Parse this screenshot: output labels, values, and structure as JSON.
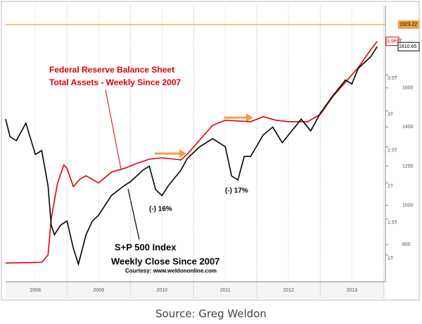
{
  "chart_data": {
    "type": "line",
    "source": "Source: Greg Weldon",
    "annotations": [
      "Federal Reserve Balance Sheet",
      "Total Assets - Weekly Since 2007",
      "S+P 500 Index",
      "Weekly Close Since 2007",
      "Courtesy: www.weldononline.com",
      "(-) 16%",
      "(-) 17%"
    ],
    "xlim": [
      2008.03,
      2014.03
    ],
    "xticks": [
      {
        "value": 2008.5,
        "label": "2008"
      },
      {
        "value": 2009.5,
        "label": "2009"
      },
      {
        "value": 2010.5,
        "label": "2010"
      },
      {
        "value": 2011.5,
        "label": "2011"
      },
      {
        "value": 2012.5,
        "label": "2012"
      },
      {
        "value": 2013.5,
        "label": "2013"
      }
    ],
    "ylim": [
      0.63,
      4.46
    ],
    "yticks": [
      {
        "value": 1,
        "label": "1T"
      },
      {
        "value": 1.5,
        "label": "1.5T"
      },
      {
        "value": 2,
        "label": "2T"
      },
      {
        "value": 2.5,
        "label": "2.5T"
      },
      {
        "value": 3,
        "label": "3T"
      },
      {
        "value": 3.5,
        "label": "3.5T"
      },
      {
        "value": 4,
        "label": "4T"
      }
    ],
    "y2lim": [
      610,
      2020
    ],
    "y2ticks": [
      800,
      1000,
      1200,
      1400,
      1600
    ],
    "hline": {
      "value": 1923.22,
      "axis": "y2",
      "color": "#f0a040"
    },
    "grid": true,
    "series": [
      {
        "color": "#e00000",
        "axis": "y",
        "x": [
          2008.03,
          2008.6,
          2008.7,
          2008.75,
          2008.85,
          2008.95,
          2009.0,
          2009.1,
          2009.2,
          2009.3,
          2009.5,
          2009.7,
          2009.9,
          2010.1,
          2010.3,
          2010.5,
          2010.8,
          2010.9,
          2011.1,
          2011.3,
          2011.5,
          2011.7,
          2011.9,
          2012.1,
          2012.3,
          2012.5,
          2012.8,
          2013.0,
          2013.2,
          2013.4,
          2013.6,
          2013.8,
          2013.9
        ],
        "values": [
          0.89,
          0.9,
          1.0,
          1.5,
          2.0,
          2.25,
          2.2,
          1.95,
          2.05,
          2.1,
          2.0,
          2.15,
          2.2,
          2.27,
          2.33,
          2.35,
          2.32,
          2.4,
          2.6,
          2.8,
          2.87,
          2.86,
          2.85,
          2.92,
          2.87,
          2.85,
          2.85,
          2.95,
          3.2,
          3.4,
          3.6,
          3.85,
          3.965
        ],
        "value_labels": [
          null,
          null,
          null,
          null,
          null,
          null,
          null,
          null,
          null,
          null,
          null,
          null,
          null,
          null,
          null,
          null,
          null,
          null,
          null,
          null,
          null,
          null,
          null,
          null,
          null,
          null,
          null,
          null,
          null,
          null,
          null,
          null,
          "3.965T"
        ]
      },
      {
        "color": "#000000",
        "axis": "y2",
        "x": [
          2008.03,
          2008.1,
          2008.2,
          2008.35,
          2008.5,
          2008.6,
          2008.7,
          2008.75,
          2008.8,
          2008.9,
          2009.0,
          2009.1,
          2009.18,
          2009.3,
          2009.4,
          2009.5,
          2009.6,
          2009.7,
          2009.9,
          2010.0,
          2010.2,
          2010.3,
          2010.4,
          2010.5,
          2010.6,
          2010.8,
          2010.9,
          2011.1,
          2011.3,
          2011.5,
          2011.6,
          2011.7,
          2011.8,
          2011.9,
          2012.1,
          2012.25,
          2012.4,
          2012.5,
          2012.7,
          2012.85,
          2013.0,
          2013.2,
          2013.4,
          2013.5,
          2013.6,
          2013.8,
          2013.9
        ],
        "values": [
          1440,
          1350,
          1330,
          1420,
          1260,
          1280,
          1100,
          900,
          850,
          900,
          920,
          780,
          700,
          850,
          920,
          950,
          1000,
          1050,
          1100,
          1120,
          1180,
          1200,
          1080,
          1050,
          1100,
          1180,
          1240,
          1300,
          1340,
          1300,
          1150,
          1130,
          1250,
          1250,
          1360,
          1400,
          1320,
          1360,
          1440,
          1380,
          1470,
          1560,
          1640,
          1620,
          1700,
          1760,
          1810.65
        ]
      }
    ]
  }
}
